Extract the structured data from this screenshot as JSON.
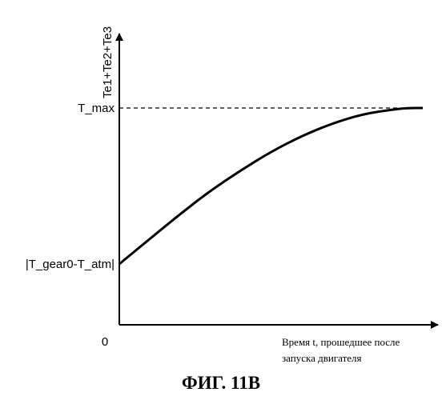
{
  "chart_data": {
    "type": "line",
    "title": "",
    "ylabel": "Te1+Te2+Te3",
    "xlabel_lines": [
      "Время t, прошедшее после",
      "запуска двигателя"
    ],
    "origin_label": "0",
    "y_ticks": [
      {
        "label": "T_max",
        "value": 1.0
      },
      {
        "label": "|T_gear0-T_atm|",
        "value": 0.0
      }
    ],
    "xlim": [
      0,
      1.0
    ],
    "ylim": [
      -0.5,
      1.3
    ],
    "series": [
      {
        "x": [
          0,
          0.1,
          0.2,
          0.3,
          0.4,
          0.5,
          0.6,
          0.7,
          0.8,
          0.9,
          0.95,
          1.0
        ],
        "y": [
          0,
          0.16,
          0.32,
          0.47,
          0.6,
          0.72,
          0.82,
          0.9,
          0.96,
          0.99,
          1.0,
          1.0
        ]
      }
    ],
    "reference_lines": [
      {
        "y": 1.0,
        "style": "dashed"
      }
    ],
    "caption": "ФИГ. 11B"
  }
}
